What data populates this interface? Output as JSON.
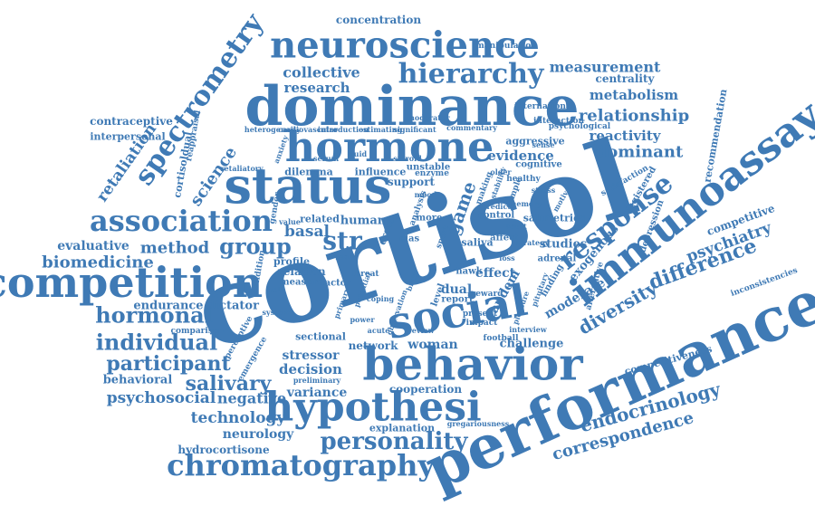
{
  "word_cloud": {
    "color": "#3f7ab5",
    "words": [
      "cortisol",
      "performance",
      "dominance",
      "hormone",
      "status",
      "behavior",
      "social",
      "competition",
      "hypothesi",
      "immunoassay",
      "neuroscience",
      "chromatography",
      "association",
      "spectrometry",
      "hierarchy",
      "response",
      "personality",
      "individual",
      "hormonal",
      "group",
      "participant",
      "salivary",
      "difference",
      "endocrinology",
      "correspondence",
      "diversity",
      "biomedicine",
      "psychosocial",
      "relationship",
      "str",
      "dominant",
      "measurement",
      "metabolism",
      "reactivity",
      "method",
      "science",
      "evidence",
      "technology",
      "retaliation",
      "psychiatry",
      "collective",
      "research",
      "concentration",
      "basal",
      "evaluative",
      "decision",
      "stressor",
      "variance",
      "negative",
      "neurology",
      "hydrocortisone",
      "behavioral",
      "endurance",
      "woman",
      "challenge",
      "dual",
      "effect",
      "tandem",
      "moderate",
      "exogenous",
      "competitive",
      "centrality",
      "contraceptive",
      "interpersonal",
      "dictator",
      "human",
      "cooperation",
      "network",
      "studies",
      "game",
      "support",
      "recommendation",
      "competitiveness",
      "saliva",
      "salimetries",
      "explanation",
      "related",
      "cortisoldual",
      "influence",
      "dilemma",
      "aggressive",
      "cognitive",
      "manipulation",
      "international",
      "reappraisal",
      "interaction",
      "adrenal",
      "relation",
      "measure",
      "factor",
      "report",
      "reward",
      "inconsistencies",
      "gregariousness",
      "comparison",
      "elas",
      "level",
      "cross",
      "more",
      "strategy",
      "alternative",
      "depression",
      "satisfaction",
      "registered",
      "psychological",
      "unstable",
      "present",
      "impact",
      "sectional",
      "football",
      "interview",
      "profile",
      "condition",
      "introduction",
      "commentary",
      "heterogeneity",
      "perceptive",
      "emergence",
      "preliminary",
      "estimating",
      "significant",
      "moderator",
      "cardiovascular",
      "enzyme",
      "stability",
      "healthy",
      "sample",
      "predict",
      "control",
      "hawk",
      "making",
      "sport",
      "retaliatory",
      "gender",
      "finding",
      "pituitary",
      "lead",
      "threat",
      "potential",
      "coping",
      "observation",
      "analysis",
      "affect",
      "power",
      "primary",
      "review",
      "acute",
      "steroid",
      "fluid",
      "serum",
      "anxiety",
      "memory",
      "stress",
      "loss",
      "pleasure",
      "older",
      "adult",
      "self",
      "brain",
      "system",
      "mood",
      "motive",
      "sense",
      "value"
    ]
  }
}
